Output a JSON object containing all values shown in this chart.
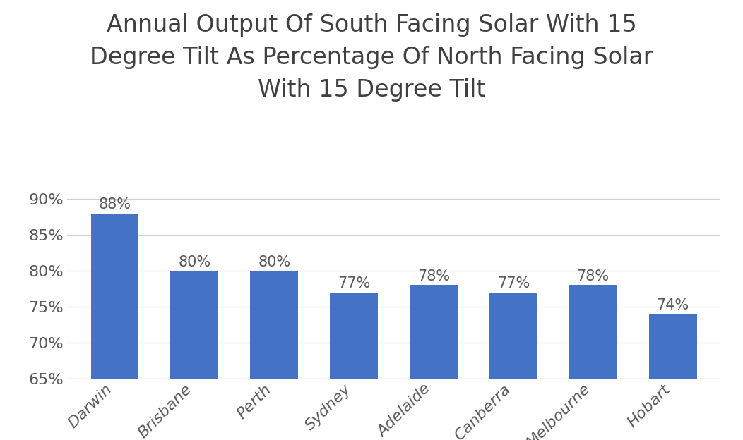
{
  "title": "Annual Output Of South Facing Solar With 15\nDegree Tilt As Percentage Of North Facing Solar\nWith 15 Degree Tilt",
  "categories": [
    "Darwin",
    "Brisbane",
    "Perth",
    "Sydney",
    "Adelaide",
    "Canberra",
    "Melbourne",
    "Hobart"
  ],
  "values": [
    88,
    80,
    80,
    77,
    78,
    77,
    78,
    74
  ],
  "bar_color": "#4472C4",
  "ylim": [
    65,
    92
  ],
  "yticks": [
    65,
    70,
    75,
    80,
    85,
    90
  ],
  "title_fontsize": 24,
  "tick_fontsize": 16,
  "label_fontsize": 15,
  "background_color": "#ffffff",
  "grid_color": "#d0d0d0",
  "title_color": "#404040",
  "tick_color": "#595959"
}
